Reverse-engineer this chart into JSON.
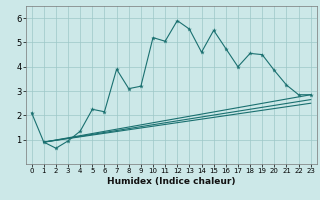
{
  "title": "",
  "xlabel": "Humidex (Indice chaleur)",
  "ylabel": "",
  "xlim": [
    -0.5,
    23.5
  ],
  "ylim": [
    0,
    6.5
  ],
  "xticks": [
    0,
    1,
    2,
    3,
    4,
    5,
    6,
    7,
    8,
    9,
    10,
    11,
    12,
    13,
    14,
    15,
    16,
    17,
    18,
    19,
    20,
    21,
    22,
    23
  ],
  "yticks": [
    1,
    2,
    3,
    4,
    5,
    6
  ],
  "bg_color": "#cce8e8",
  "line_color": "#1a7070",
  "grid_color": "#9ec8c8",
  "series1": {
    "x": [
      0,
      1,
      2,
      3,
      4,
      5,
      6,
      7,
      8,
      9,
      10,
      11,
      12,
      13,
      14,
      15,
      16,
      17,
      18,
      19,
      20,
      21,
      22,
      23
    ],
    "y": [
      2.1,
      0.9,
      0.65,
      0.95,
      1.35,
      2.25,
      2.15,
      3.9,
      3.1,
      3.2,
      5.2,
      5.05,
      5.9,
      5.55,
      4.6,
      5.5,
      4.75,
      4.0,
      4.55,
      4.5,
      3.85,
      3.25,
      2.85,
      2.85
    ]
  },
  "series2": {
    "x": [
      1,
      23
    ],
    "y": [
      0.9,
      2.85
    ]
  },
  "series3": {
    "x": [
      1,
      23
    ],
    "y": [
      0.9,
      2.65
    ]
  },
  "series4": {
    "x": [
      1,
      23
    ],
    "y": [
      0.9,
      2.5
    ]
  },
  "xlabel_fontsize": 6.5,
  "tick_fontsize_x": 5.0,
  "tick_fontsize_y": 6.0
}
